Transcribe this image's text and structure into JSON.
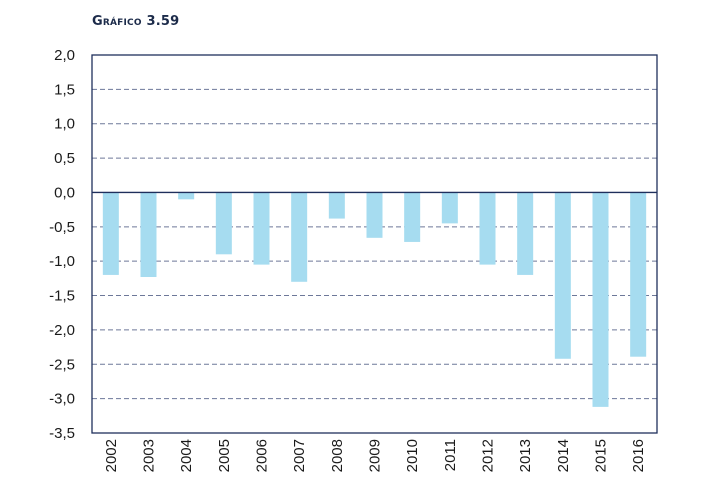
{
  "figure": {
    "title": "Gráfico 3.59"
  },
  "chart_data": {
    "type": "bar",
    "categories": [
      "2002",
      "2003",
      "2004",
      "2005",
      "2006",
      "2007",
      "2008",
      "2009",
      "2010",
      "2011",
      "2012",
      "2013",
      "2014",
      "2015",
      "2016"
    ],
    "values": [
      -1.2,
      -1.23,
      -0.1,
      -0.9,
      -1.05,
      -1.3,
      -0.38,
      -0.66,
      -0.72,
      -0.45,
      -1.05,
      -1.2,
      -2.42,
      -3.12,
      -2.39
    ],
    "ylim": [
      -3.5,
      2.0
    ],
    "yticks": [
      2.0,
      1.5,
      1.0,
      0.5,
      0.0,
      -0.5,
      -1.0,
      -1.5,
      -2.0,
      -2.5,
      -3.0,
      -3.5
    ],
    "ytick_labels": [
      "2,0",
      "1,5",
      "1,0",
      "0,5",
      "0,0",
      "-0,5",
      "-1,0",
      "-1,5",
      "-2,0",
      "-2,5",
      "-3,0",
      "-3,5"
    ],
    "grid": true,
    "bar_color": "#a6dcf0",
    "axis_color": "#1f2f5c",
    "grid_color": "#6d7899"
  }
}
